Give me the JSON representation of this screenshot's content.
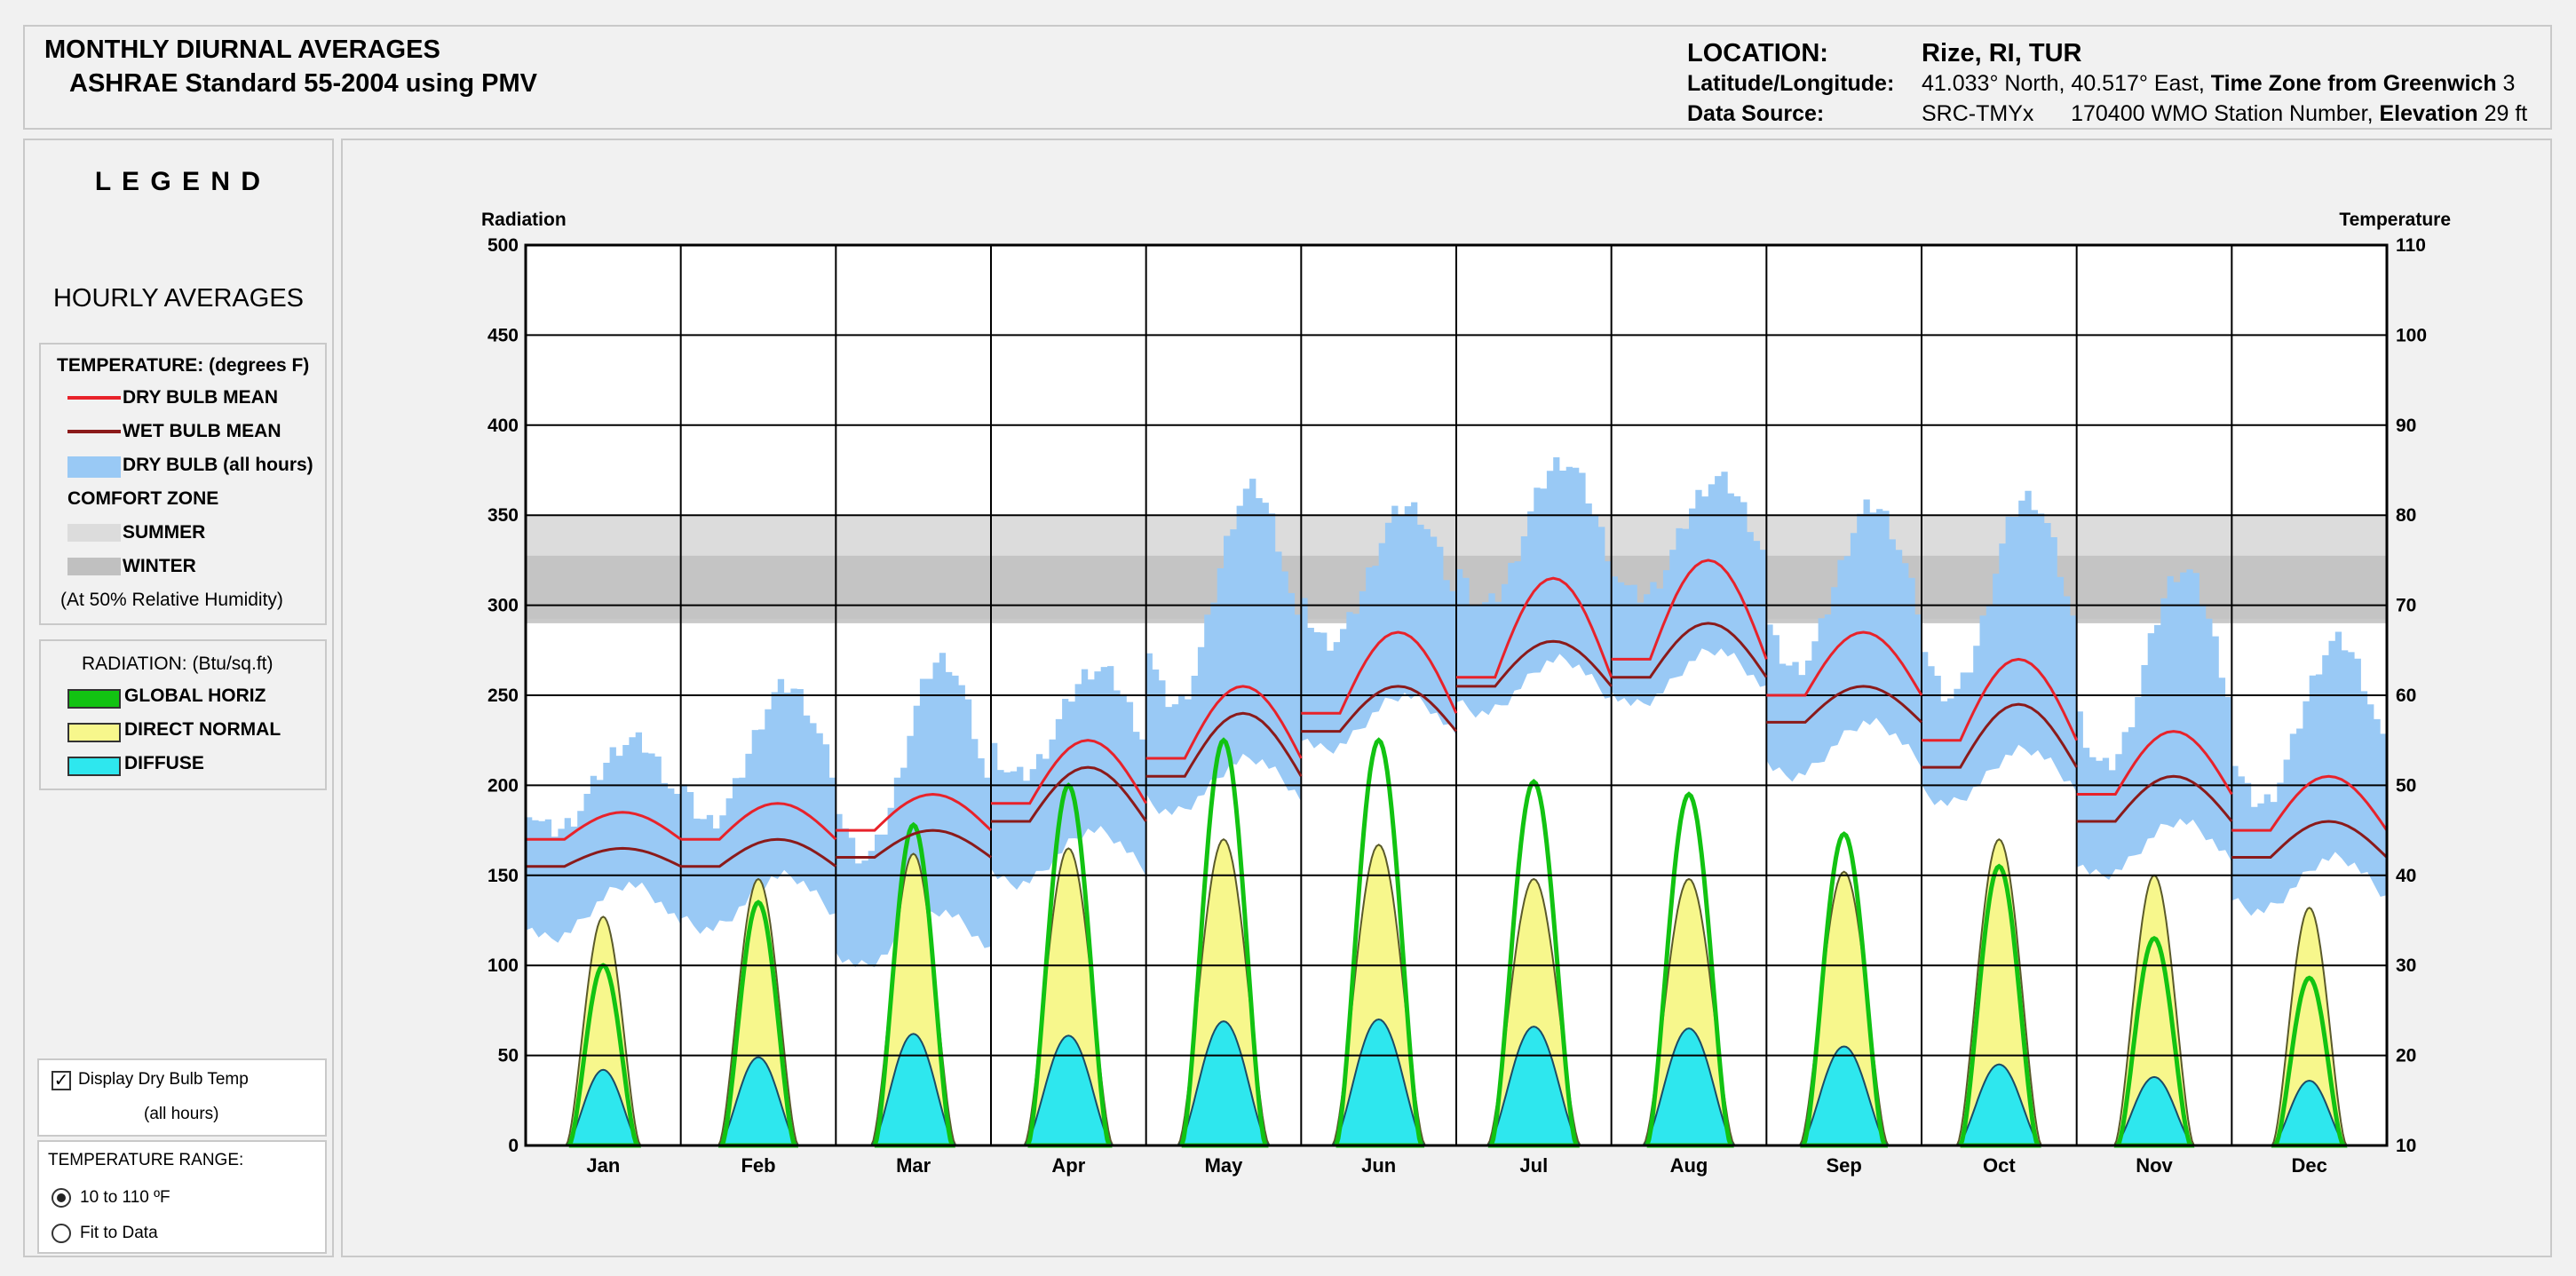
{
  "header": {
    "title": "MONTHLY DIURNAL AVERAGES",
    "subtitle": "ASHRAE Standard 55-2004 using PMV",
    "location_label": "LOCATION:",
    "location_value": "Rize, RI, TUR",
    "latlon_label": "Latitude/Longitude:",
    "latlon_value": "41.033° North, 40.517° East,",
    "tz_label": "Time Zone from Greenwich",
    "tz_value": "3",
    "source_label": "Data Source:",
    "source_value": "SRC-TMYx",
    "station_value": "170400 WMO Station Number,",
    "elev_label": "Elevation",
    "elev_value": "29 ft"
  },
  "legend": {
    "title": "L E G E N D",
    "subtitle": "HOURLY AVERAGES",
    "temp_header": "TEMPERATURE: (degrees F)",
    "dry_bulb_mean": "DRY BULB MEAN",
    "wet_bulb_mean": "WET BULB MEAN",
    "dry_bulb_all": "DRY BULB (all hours)",
    "comfort_zone": "COMFORT ZONE",
    "summer": "SUMMER",
    "winter": "WINTER",
    "rh_note": "(At 50% Relative Humidity)",
    "rad_header": "RADIATION: (Btu/sq.ft)",
    "global_horiz": "GLOBAL HORIZ",
    "direct_normal": "DIRECT NORMAL",
    "diffuse": "DIFFUSE"
  },
  "controls": {
    "display_dry_bulb": "Display Dry Bulb Temp",
    "display_dry_bulb_sub": "(all hours)",
    "temp_range_label": "TEMPERATURE RANGE:",
    "range_option_1": "10 to 110 ºF",
    "range_option_2": "Fit to Data"
  },
  "colors": {
    "dry_bulb_mean": "#e8222a",
    "wet_bulb_mean": "#8b1a1a",
    "dry_bulb_all": "#99c9f5",
    "summer_zone": "#dcdcdc",
    "winter_zone": "#c0c0c0",
    "global_horiz": "#12c312",
    "direct_normal": "#f7f78c",
    "diffuse": "#2ee7ee"
  },
  "chart_data": {
    "type": "line",
    "left_axis_label": "Radiation",
    "right_axis_label": "Temperature",
    "left_ylim": [
      0,
      500
    ],
    "right_ylim": [
      10,
      110
    ],
    "left_ticks": [
      "0",
      "50",
      "100",
      "150",
      "200",
      "250",
      "300",
      "350",
      "400",
      "450",
      "500"
    ],
    "right_ticks": [
      "10",
      "20",
      "30",
      "40",
      "50",
      "60",
      "70",
      "80",
      "90",
      "100",
      "110"
    ],
    "months": [
      "Jan",
      "Feb",
      "Mar",
      "Apr",
      "May",
      "Jun",
      "Jul",
      "Aug",
      "Sep",
      "Oct",
      "Nov",
      "Dec"
    ],
    "comfort_zone": {
      "summer": [
        68.5,
        80
      ],
      "winter": [
        68,
        75.5
      ]
    },
    "dry_bulb_mean_min": [
      44,
      44,
      45,
      48,
      53,
      58,
      62,
      64,
      60,
      55,
      49,
      45
    ],
    "dry_bulb_mean_max": [
      47,
      48,
      49,
      55,
      61,
      67,
      73,
      75,
      67,
      64,
      56,
      51
    ],
    "wet_bulb_mean_min": [
      41,
      41,
      42,
      46,
      51,
      56,
      61,
      62,
      57,
      52,
      46,
      42
    ],
    "wet_bulb_mean_max": [
      43,
      44,
      45,
      52,
      58,
      61,
      66,
      68,
      61,
      59,
      51,
      46
    ],
    "dry_bulb_all_low": [
      33,
      34,
      30,
      39,
      47,
      54,
      58,
      59,
      51,
      48,
      40,
      36
    ],
    "dry_bulb_all_high": [
      55,
      61,
      64,
      63,
      83,
      81,
      86,
      84,
      81,
      82,
      74,
      66
    ],
    "global_horiz_peak": [
      100,
      135,
      178,
      200,
      225,
      225,
      202,
      195,
      173,
      155,
      115,
      93
    ],
    "direct_normal_peak": [
      127,
      148,
      162,
      165,
      170,
      167,
      148,
      148,
      152,
      170,
      150,
      132
    ],
    "diffuse_peak": [
      42,
      49,
      62,
      61,
      69,
      70,
      66,
      65,
      55,
      45,
      38,
      36
    ]
  }
}
